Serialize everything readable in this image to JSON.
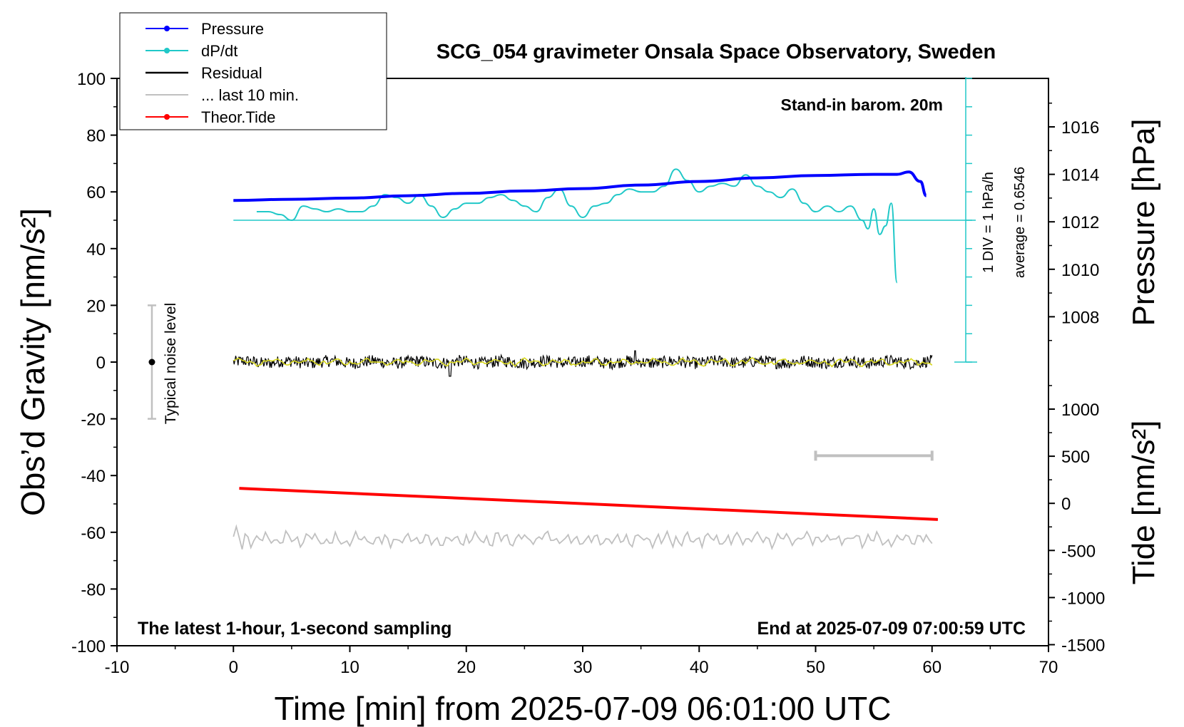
{
  "chart_data": {
    "type": "line",
    "title": "SCG_054 gravimeter Onsala Space Observatory, Sweden",
    "xlabel": "Time [min] from 2025-07-09 06:01:00 UTC",
    "ylabel": "Obs’d Gravity [nm/s²]",
    "xlim": [
      -10,
      70
    ],
    "ylim": [
      -100,
      100
    ],
    "x_ticks": [
      "-10",
      "0",
      "10",
      "20",
      "30",
      "40",
      "50",
      "60",
      "70"
    ],
    "y_ticks": [
      "100",
      "80",
      "60",
      "40",
      "20",
      "0",
      "-20",
      "-40",
      "-60",
      "-80",
      "-100"
    ],
    "pressure_axis": {
      "label": "Pressure [hPa]",
      "ticks": [
        "1016",
        "1014",
        "1012",
        "1010",
        "1008"
      ],
      "tick_values": [
        1016,
        1014,
        1012,
        1010,
        1008
      ]
    },
    "tide_axis": {
      "label": "Tide [nm/s²]",
      "ticks": [
        "1000",
        "500",
        "0",
        "-500",
        "-1000",
        "-1500"
      ],
      "tick_values": [
        1000,
        500,
        0,
        -500,
        -1000,
        -1500
      ]
    },
    "legend": {
      "placement": "top-left",
      "entries": [
        {
          "label": "Pressure",
          "color": "#0000ff",
          "marker": true
        },
        {
          "label": "dP/dt",
          "color": "#20c8c8",
          "marker": true
        },
        {
          "label": "Residual",
          "color": "#000000",
          "marker": false
        },
        {
          "label": "... last 10 min.",
          "color": "#c0c0c0",
          "marker": false
        },
        {
          "label": "Theor.Tide",
          "color": "#ff0000",
          "marker": true
        }
      ]
    },
    "annotations": {
      "stand_in": "Stand-in barom. 20m",
      "noise": "Typical noise level",
      "dpdt_div": "1 DIV = 1 hPa/h",
      "dpdt_avg": "average = 0.6546",
      "bottom_left": "The latest 1-hour, 1-second sampling",
      "bottom_right": "End at 2025-07-09 07:00:59 UTC"
    },
    "series": [
      {
        "name": "Pressure",
        "color": "#0000ff",
        "unit": "hPa",
        "x": [
          0,
          5,
          10,
          15,
          20,
          25,
          30,
          35,
          40,
          45,
          50,
          55,
          57,
          58,
          59,
          59.5
        ],
        "y": [
          1012.9,
          1012.95,
          1013.0,
          1013.1,
          1013.2,
          1013.3,
          1013.4,
          1013.55,
          1013.7,
          1013.85,
          1013.95,
          1014.0,
          1014.0,
          1014.1,
          1013.7,
          1013.1
        ]
      },
      {
        "name": "dP/dt",
        "color": "#20c8c8",
        "unit": "nm/s² (plot scale)",
        "x": [
          2,
          3,
          4,
          5,
          6,
          7,
          8,
          9,
          10,
          11,
          12,
          13,
          14,
          15,
          16,
          17,
          18,
          19,
          20,
          21,
          22,
          23,
          24,
          25,
          26,
          27,
          28,
          29,
          30,
          31,
          32,
          33,
          34,
          35,
          36,
          37,
          38,
          39,
          40,
          41,
          42,
          43,
          44,
          45,
          46,
          47,
          48,
          49,
          50,
          51,
          52,
          53,
          54,
          54.5,
          55,
          55.5,
          56,
          56.5,
          57
        ],
        "y": [
          53,
          53,
          52,
          50,
          55,
          54,
          53,
          54,
          53,
          53,
          55,
          59,
          58,
          56,
          59,
          55,
          51,
          54,
          56,
          56,
          58,
          59,
          57,
          55,
          53,
          58,
          61,
          55,
          51,
          55,
          56,
          59,
          61,
          60,
          60,
          62,
          68,
          64,
          60,
          62,
          63,
          62,
          66,
          62,
          60,
          58,
          61,
          56,
          53,
          55,
          53,
          55,
          50,
          47,
          54,
          45,
          48,
          56,
          28
        ]
      },
      {
        "name": "Residual",
        "color": "#000000",
        "unit": "nm/s²",
        "x_range": [
          0,
          60
        ],
        "y_range": [
          -5,
          4
        ]
      },
      {
        "name": "... last 10 min.",
        "color": "#c0c0c0",
        "unit": "nm/s²",
        "x_range": [
          0,
          60
        ],
        "y_range": [
          -66,
          -58
        ]
      },
      {
        "name": "Theor.Tide",
        "color": "#ff0000",
        "unit": "nm/s²",
        "x": [
          0.5,
          60.5
        ],
        "y": [
          -44.5,
          -55.5
        ]
      }
    ],
    "noise_bar": {
      "x": -7,
      "y_min": -20,
      "y_max": 20,
      "center": 0
    },
    "scale_bar": {
      "x_min": 50,
      "x_max": 60,
      "y": -33
    },
    "dpdt_baseline": 50
  }
}
